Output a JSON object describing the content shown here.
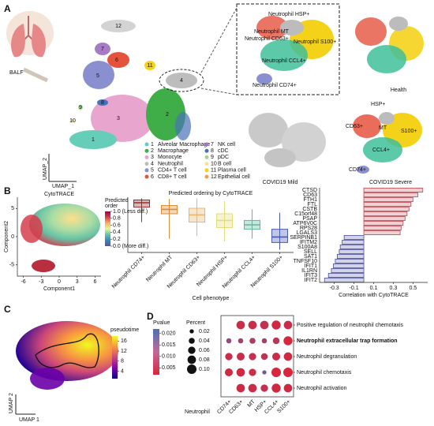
{
  "panel_labels": [
    "A",
    "B",
    "C",
    "D"
  ],
  "umap": {
    "x_label": "UMAP_1",
    "y_label": "UMAP_2",
    "tissue": "BALF",
    "clusters": [
      {
        "id": 1,
        "name": "Alveolar Macrophage",
        "color": "#66cdb8"
      },
      {
        "id": 2,
        "name": "Macrophage",
        "color": "#3fae49"
      },
      {
        "id": 3,
        "name": "Monocyte",
        "color": "#e8a6cf"
      },
      {
        "id": 4,
        "name": "Neutrophil",
        "color": "#bdbdbd"
      },
      {
        "id": 5,
        "name": "CD4+ T cell",
        "color": "#8a8fd0"
      },
      {
        "id": 6,
        "name": "CD8+ T cell",
        "color": "#e5533d"
      },
      {
        "id": 7,
        "name": "NK cell",
        "color": "#a47bc4"
      },
      {
        "id": 8,
        "name": "cDC",
        "color": "#4a72b8"
      },
      {
        "id": 9,
        "name": "pDC",
        "color": "#9fd68a"
      },
      {
        "id": 10,
        "name": "B cell",
        "color": "#f2e3a0"
      },
      {
        "id": 11,
        "name": "Plasma cell",
        "color": "#f5d21a"
      },
      {
        "id": 12,
        "name": "Epithelial cell",
        "color": "#f0a050"
      }
    ],
    "inset_labels": [
      "Neutrophil HSP+",
      "Neutrophil MT",
      "Neutrophil CD63+",
      "Neutrophil S100+",
      "Neutrophil CCL4+",
      "Neutrophil CD74+"
    ],
    "conditions": [
      "Health",
      "COVID19 Mild",
      "COVID19 Severe"
    ],
    "severe_labels": [
      "HSP+",
      "CD63+",
      "MT",
      "S100+",
      "CCL4+",
      "CD74+"
    ]
  },
  "chart_data": [
    {
      "type": "scatter",
      "title": "CytoTRACE",
      "x_label": "Component1",
      "y_label": "Component2",
      "xlim": [
        -7,
        7
      ],
      "ylim": [
        -7,
        7
      ],
      "xticks": [
        -6,
        -3,
        0,
        3,
        6
      ],
      "yticks": [
        -5,
        0,
        5
      ],
      "colorbar_title": [
        "Predicted",
        "order"
      ],
      "clim": [
        0,
        1
      ],
      "colorbar_ticks": [
        {
          "value": 1,
          "label": "1.0 (Less diff.)"
        },
        {
          "value": 0.8,
          "label": "0.8"
        },
        {
          "value": 0.6,
          "label": "0.6"
        },
        {
          "value": 0.4,
          "label": "0.4"
        },
        {
          "value": 0.2,
          "label": "0.2"
        },
        {
          "value": 0,
          "label": "0.0 (More diff.)"
        }
      ],
      "colorbar_colors": [
        "#5e4fa2",
        "#3288bd",
        "#66c2a5",
        "#e6f598",
        "#fdae61",
        "#d53e4f",
        "#9e0142"
      ]
    },
    {
      "type": "box",
      "title": "Predicted ordering by CytoTRACE",
      "x_label": "Cell phenotype",
      "ylim": [
        0,
        1
      ],
      "categories": [
        "Neutrophil CD74+",
        "Neutrophil MT",
        "Neutrophil CD63+",
        "Neutrophil HSP+",
        "Neutrophil CCL4+",
        "Neutrophil S100+"
      ],
      "colors": [
        "#9b2d2d",
        "#d98c3a",
        "#e8b86a",
        "#e3dc7a",
        "#5fb8a0",
        "#4a5cb0"
      ],
      "low": [
        0.55,
        0.25,
        0.3,
        0.2,
        0.25,
        0.05
      ],
      "q1": [
        0.82,
        0.7,
        0.55,
        0.45,
        0.42,
        0.18
      ],
      "median": [
        0.9,
        0.78,
        0.68,
        0.58,
        0.5,
        0.28
      ],
      "q3": [
        0.95,
        0.85,
        0.8,
        0.7,
        0.58,
        0.42
      ],
      "high": [
        0.98,
        0.97,
        0.98,
        0.93,
        0.78,
        0.72
      ]
    },
    {
      "type": "barh",
      "x_label": "Correlation with CytoTRACE",
      "xlim": [
        -0.45,
        0.65
      ],
      "xticks": [
        -0.3,
        -0.1,
        0.1,
        0.3,
        0.5
      ],
      "positive_color": "#c0434f",
      "negative_color": "#4a4f9a",
      "categories": [
        "CTSD",
        "CD63",
        "FTH1",
        "FTL",
        "CSTB",
        "C15orf48",
        "PSAP",
        "ATP6V0C",
        "RPS28",
        "LGALS3",
        "SERPINB1",
        "IFITM2",
        "S100A8",
        "SELL",
        "SAT1",
        "TNFSF10",
        "IFIT1",
        "IL1RN",
        "IFIT3",
        "IFIT2"
      ],
      "values": [
        0.6,
        0.55,
        0.5,
        0.48,
        0.46,
        0.44,
        0.42,
        0.4,
        0.38,
        0.37,
        -0.2,
        -0.22,
        -0.24,
        -0.25,
        -0.27,
        -0.29,
        -0.31,
        -0.33,
        -0.36,
        -0.4
      ]
    },
    {
      "type": "pseudotime",
      "x_label": "UMAP 1",
      "y_label": "UMAP 2",
      "colorbar_title": "pseudotime",
      "clim": [
        1,
        18
      ],
      "colorbar_ticks": [
        4,
        8,
        12,
        16
      ],
      "colorbar_colors": [
        "#0d0887",
        "#7e03a8",
        "#cc4778",
        "#f89540",
        "#f0f921"
      ]
    },
    {
      "type": "dot",
      "x_label": "Neutrophil",
      "categories": [
        "CD74+",
        "CD63+",
        "MT",
        "HSP+",
        "CCL4+",
        "S100+"
      ],
      "terms": [
        "Positive regulation of neutrophil chemotaxis",
        "Neutrophil extracellular trap formation",
        "Neutrophil degranulation",
        "Neutrophil chemotaxis",
        "Neutrophil activation"
      ],
      "highlight": 1,
      "sizes": [
        [
          null,
          0.08,
          0.08,
          0.08,
          0.09,
          0.08
        ],
        [
          0.03,
          0.03,
          0.04,
          0.03,
          0.05,
          0.09
        ],
        [
          0.06,
          0.07,
          0.06,
          0.05,
          0.07,
          0.08
        ],
        [
          0.07,
          0.08,
          0.06,
          0.02,
          0.1,
          0.1
        ],
        [
          null,
          0.08,
          0.08,
          0.06,
          0.09,
          0.08
        ]
      ],
      "pvalues": [
        [
          null,
          0.004,
          0.004,
          0.005,
          0.003,
          0.004
        ],
        [
          0.012,
          0.01,
          0.008,
          0.01,
          0.006,
          0.002
        ],
        [
          0.004,
          0.004,
          0.005,
          0.006,
          0.004,
          0.003
        ],
        [
          0.003,
          0.003,
          0.004,
          0.016,
          0.002,
          0.002
        ],
        [
          null,
          0.003,
          0.004,
          0.005,
          0.003,
          0.003
        ]
      ],
      "size_title": "Percent",
      "size_ticks": [
        0.02,
        0.04,
        0.06,
        0.08,
        {
          "value": 0.1,
          "label": "0.10"
        }
      ],
      "color_title": "Pvalue",
      "clim": [
        0.002,
        0.022
      ],
      "color_ticks": [
        {
          "value": 0.02,
          "label": "0.020"
        },
        {
          "value": 0.015,
          "label": "0.015"
        },
        {
          "value": 0.01,
          "label": "0.010"
        },
        {
          "value": 0.005,
          "label": "0.005"
        }
      ],
      "low_color": "#d7263d",
      "high_color": "#4a6fb5"
    }
  ]
}
